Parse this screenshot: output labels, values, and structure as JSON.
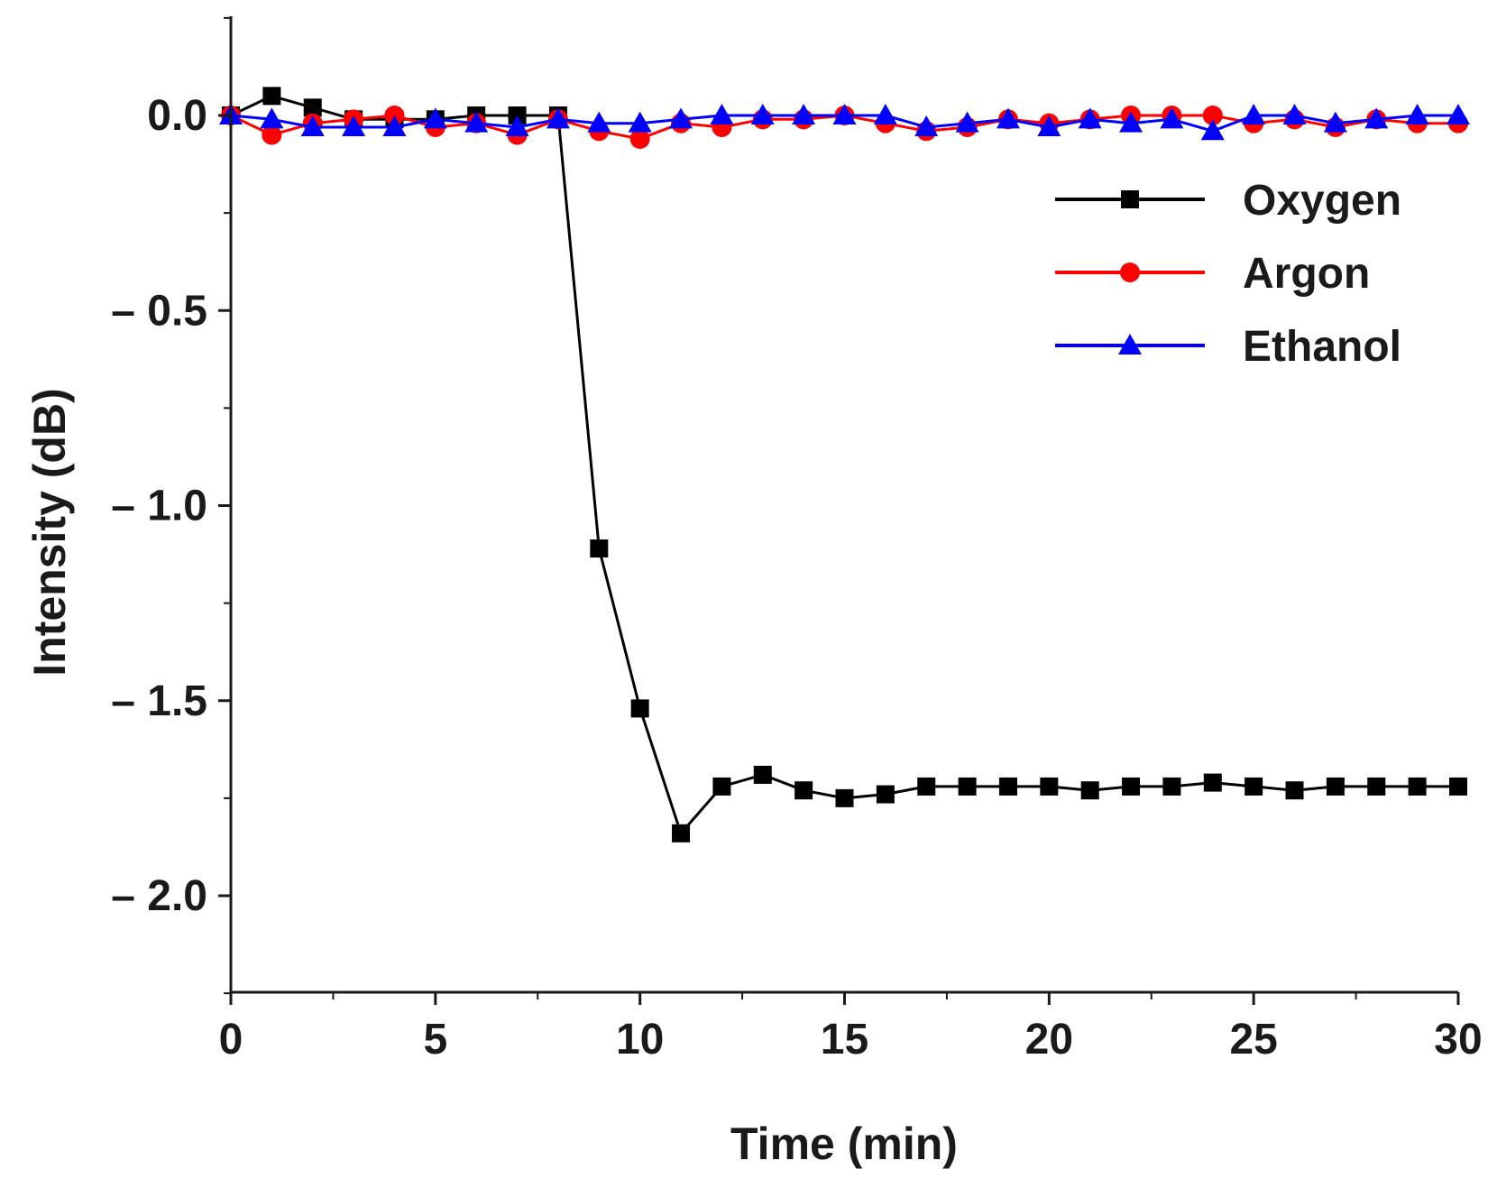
{
  "chart_data": {
    "type": "line",
    "title": "",
    "xlabel": "Time (min)",
    "ylabel": "Intensity (dB)",
    "xlim": [
      0,
      30
    ],
    "ylim": [
      -2.25,
      0.25
    ],
    "x_ticks": [
      0,
      5,
      10,
      15,
      20,
      25,
      30
    ],
    "x_tick_labels": [
      "0",
      "5",
      "10",
      "15",
      "20",
      "25",
      "30"
    ],
    "y_ticks": [
      0.0,
      -0.5,
      -1.0,
      -1.5,
      -2.0
    ],
    "y_tick_labels": [
      "0.0",
      "– 0.5",
      "– 1.0",
      "– 1.5",
      "– 2.0"
    ],
    "legend_position": "top-right",
    "x": [
      0,
      1,
      2,
      3,
      4,
      5,
      6,
      7,
      8,
      9,
      10,
      11,
      12,
      13,
      14,
      15,
      16,
      17,
      18,
      19,
      20,
      21,
      22,
      23,
      24,
      25,
      26,
      27,
      28,
      29,
      30
    ],
    "series": [
      {
        "name": "Oxygen",
        "color": "#000000",
        "marker": "square",
        "values": [
          0.0,
          0.05,
          0.02,
          -0.01,
          -0.01,
          -0.01,
          0.0,
          0.0,
          0.0,
          -1.11,
          -1.52,
          -1.84,
          -1.72,
          -1.69,
          -1.73,
          -1.75,
          -1.74,
          -1.72,
          -1.72,
          -1.72,
          -1.72,
          -1.73,
          -1.72,
          -1.72,
          -1.71,
          -1.72,
          -1.73,
          -1.72,
          -1.72,
          -1.72,
          -1.72
        ]
      },
      {
        "name": "Argon",
        "color": "#ff0000",
        "marker": "circle",
        "values": [
          0.0,
          -0.05,
          -0.02,
          -0.01,
          0.0,
          -0.03,
          -0.02,
          -0.05,
          -0.01,
          -0.04,
          -0.06,
          -0.02,
          -0.03,
          -0.01,
          -0.01,
          0.0,
          -0.02,
          -0.04,
          -0.03,
          -0.01,
          -0.02,
          -0.01,
          0.0,
          0.0,
          0.0,
          -0.02,
          -0.01,
          -0.03,
          -0.01,
          -0.02,
          -0.02
        ]
      },
      {
        "name": "Ethanol",
        "color": "#0000ff",
        "marker": "triangle",
        "values": [
          0.0,
          -0.01,
          -0.03,
          -0.03,
          -0.03,
          -0.01,
          -0.02,
          -0.03,
          -0.01,
          -0.02,
          -0.02,
          -0.01,
          0.0,
          0.0,
          0.0,
          0.0,
          0.0,
          -0.03,
          -0.02,
          -0.01,
          -0.03,
          -0.01,
          -0.02,
          -0.01,
          -0.04,
          0.0,
          0.0,
          -0.02,
          -0.01,
          0.0,
          0.0
        ]
      }
    ]
  }
}
